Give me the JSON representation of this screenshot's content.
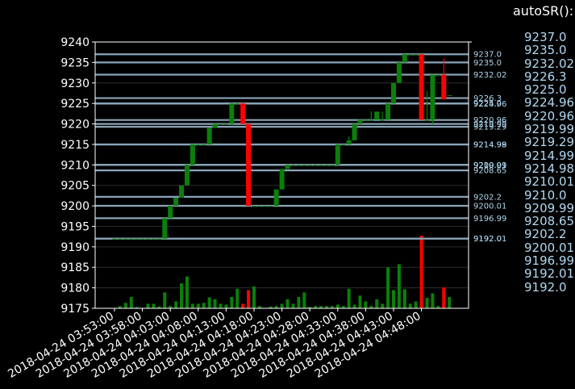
{
  "side_panel": {
    "title": "autoSR():",
    "levels": [
      "9237.0",
      "9235.0",
      "9232.02",
      "9226.3",
      "9225.0",
      "9224.96",
      "9220.96",
      "9219.99",
      "9219.29",
      "9214.99",
      "9214.98",
      "9210.01",
      "9210.0",
      "9209.99",
      "9208.65",
      "9202.2",
      "9200.01",
      "9196.99",
      "9192.01",
      "9192.0"
    ]
  },
  "colors": {
    "up": "#0a800a",
    "down": "#ff0000",
    "level_line": "#8aa4b8",
    "level_label": "#b0d8f0",
    "axis": "#ffffff",
    "background": "#000000"
  },
  "chart_data": {
    "type": "candlestick",
    "title": "",
    "xlabel": "",
    "ylabel": "",
    "grid": true,
    "ylim": [
      9175,
      9240
    ],
    "yticks": [
      9175,
      9180,
      9185,
      9190,
      9195,
      9200,
      9205,
      9210,
      9215,
      9220,
      9225,
      9230,
      9235,
      9240
    ],
    "xticks": [
      {
        "label": "2018-04-24 03:53:00",
        "index": 0
      },
      {
        "label": "2018-04-24 03:58:00",
        "index": 5
      },
      {
        "label": "2018-04-24 04:03:00",
        "index": 10
      },
      {
        "label": "2018-04-24 04:08:00",
        "index": 15
      },
      {
        "label": "2018-04-24 04:13:00",
        "index": 20
      },
      {
        "label": "2018-04-24 04:18:00",
        "index": 25
      },
      {
        "label": "2018-04-24 04:23:00",
        "index": 30
      },
      {
        "label": "2018-04-24 04:28:00",
        "index": 35
      },
      {
        "label": "2018-04-24 04:33:00",
        "index": 40
      },
      {
        "label": "2018-04-24 04:38:00",
        "index": 45
      },
      {
        "label": "2018-04-24 04:43:00",
        "index": 50
      },
      {
        "label": "2018-04-24 04:48:00",
        "index": 55
      }
    ],
    "candles": [
      {
        "o": 9192,
        "h": 9192,
        "l": 9192,
        "c": 9192
      },
      {
        "o": 9192,
        "h": 9192,
        "l": 9192,
        "c": 9192
      },
      {
        "o": 9192,
        "h": 9192,
        "l": 9192,
        "c": 9192
      },
      {
        "o": 9192,
        "h": 9192,
        "l": 9192,
        "c": 9192
      },
      {
        "o": 9192,
        "h": 9192,
        "l": 9192,
        "c": 9192
      },
      {
        "o": 9192,
        "h": 9192,
        "l": 9192,
        "c": 9192
      },
      {
        "o": 9192,
        "h": 9192,
        "l": 9192,
        "c": 9192
      },
      {
        "o": 9192,
        "h": 9192,
        "l": 9192,
        "c": 9192
      },
      {
        "o": 9192,
        "h": 9192,
        "l": 9192,
        "c": 9192
      },
      {
        "o": 9192,
        "h": 9197,
        "l": 9192,
        "c": 9197
      },
      {
        "o": 9197,
        "h": 9200,
        "l": 9197,
        "c": 9200
      },
      {
        "o": 9200,
        "h": 9202,
        "l": 9200,
        "c": 9202
      },
      {
        "o": 9202,
        "h": 9205,
        "l": 9202,
        "c": 9205
      },
      {
        "o": 9205,
        "h": 9210,
        "l": 9205,
        "c": 9210
      },
      {
        "o": 9210,
        "h": 9215,
        "l": 9210,
        "c": 9215
      },
      {
        "o": 9215,
        "h": 9215,
        "l": 9215,
        "c": 9215
      },
      {
        "o": 9215,
        "h": 9215,
        "l": 9215,
        "c": 9215
      },
      {
        "o": 9215,
        "h": 9219,
        "l": 9215,
        "c": 9219
      },
      {
        "o": 9219,
        "h": 9220,
        "l": 9219,
        "c": 9220
      },
      {
        "o": 9220,
        "h": 9220,
        "l": 9220,
        "c": 9220
      },
      {
        "o": 9220,
        "h": 9220,
        "l": 9220,
        "c": 9220
      },
      {
        "o": 9220,
        "h": 9225,
        "l": 9220,
        "c": 9225
      },
      {
        "o": 9225,
        "h": 9225,
        "l": 9225,
        "c": 9225
      },
      {
        "o": 9225,
        "h": 9225,
        "l": 9220,
        "c": 9220
      },
      {
        "o": 9220,
        "h": 9220,
        "l": 9200,
        "c": 9200
      },
      {
        "o": 9200,
        "h": 9200,
        "l": 9200,
        "c": 9200
      },
      {
        "o": 9200,
        "h": 9200,
        "l": 9200,
        "c": 9200
      },
      {
        "o": 9200,
        "h": 9200,
        "l": 9200,
        "c": 9200
      },
      {
        "o": 9200,
        "h": 9200,
        "l": 9200,
        "c": 9200
      },
      {
        "o": 9200,
        "h": 9204,
        "l": 9200,
        "c": 9204
      },
      {
        "o": 9204,
        "h": 9209,
        "l": 9204,
        "c": 9209
      },
      {
        "o": 9209,
        "h": 9210,
        "l": 9209,
        "c": 9210
      },
      {
        "o": 9210,
        "h": 9210,
        "l": 9210,
        "c": 9210
      },
      {
        "o": 9210,
        "h": 9210,
        "l": 9210,
        "c": 9210
      },
      {
        "o": 9210,
        "h": 9210,
        "l": 9210,
        "c": 9210
      },
      {
        "o": 9210,
        "h": 9210,
        "l": 9210,
        "c": 9210
      },
      {
        "o": 9210,
        "h": 9210,
        "l": 9210,
        "c": 9210
      },
      {
        "o": 9210,
        "h": 9210,
        "l": 9210,
        "c": 9210
      },
      {
        "o": 9210,
        "h": 9210,
        "l": 9210,
        "c": 9210
      },
      {
        "o": 9210,
        "h": 9210,
        "l": 9210,
        "c": 9210
      },
      {
        "o": 9210,
        "h": 9215,
        "l": 9210,
        "c": 9215
      },
      {
        "o": 9215,
        "h": 9215,
        "l": 9215,
        "c": 9215
      },
      {
        "o": 9215,
        "h": 9217,
        "l": 9215,
        "c": 9216
      },
      {
        "o": 9216,
        "h": 9220,
        "l": 9216,
        "c": 9220
      },
      {
        "o": 9220,
        "h": 9221,
        "l": 9220,
        "c": 9221
      },
      {
        "o": 9221,
        "h": 9221,
        "l": 9221,
        "c": 9221
      },
      {
        "o": 9221,
        "h": 9223,
        "l": 9221,
        "c": 9221
      },
      {
        "o": 9221,
        "h": 9223,
        "l": 9221,
        "c": 9223
      },
      {
        "o": 9221,
        "h": 9223,
        "l": 9221,
        "c": 9221
      },
      {
        "o": 9221,
        "h": 9225,
        "l": 9221,
        "c": 9225
      },
      {
        "o": 9225,
        "h": 9230,
        "l": 9225,
        "c": 9230
      },
      {
        "o": 9230,
        "h": 9235,
        "l": 9230,
        "c": 9235
      },
      {
        "o": 9235,
        "h": 9237,
        "l": 9235,
        "c": 9237
      },
      {
        "o": 9237,
        "h": 9237,
        "l": 9237,
        "c": 9237
      },
      {
        "o": 9237,
        "h": 9237,
        "l": 9237,
        "c": 9237
      },
      {
        "o": 9237,
        "h": 9237,
        "l": 9221,
        "c": 9221
      },
      {
        "o": 9221,
        "h": 9228,
        "l": 9221,
        "c": 9221
      },
      {
        "o": 9221,
        "h": 9232,
        "l": 9220,
        "c": 9232
      },
      {
        "o": 9232,
        "h": 9232,
        "l": 9232,
        "c": 9232
      },
      {
        "o": 9232,
        "h": 9236,
        "l": 9226,
        "c": 9226
      },
      {
        "o": 9227,
        "h": 9227,
        "l": 9227,
        "c": 9227
      }
    ],
    "volume": [
      0,
      0.5,
      1.2,
      2.5,
      0.3,
      0,
      1,
      1,
      0.4,
      3.5,
      0.5,
      1.5,
      5.5,
      7,
      1,
      1,
      1.2,
      2.4,
      2,
      1,
      0.8,
      2.5,
      4.3,
      1,
      4,
      4.8,
      0.5,
      0,
      0.4,
      0.5,
      1,
      2,
      1,
      2.5,
      3.5,
      0.3,
      0.5,
      0.5,
      0.5,
      0.5,
      0.8,
      0.5,
      4.3,
      0.8,
      2.8,
      1.5,
      0.5,
      2,
      1,
      9,
      4,
      9.7,
      4.2,
      1,
      1.5,
      16,
      2.3,
      3.3,
      0.5,
      4.6,
      2.5
    ],
    "levels": [
      {
        "value": 9237.0,
        "label": "9237.0"
      },
      {
        "value": 9235.0,
        "label": "9235.0"
      },
      {
        "value": 9232.02,
        "label": "9232.02"
      },
      {
        "value": 9226.3,
        "label": "9226.3"
      },
      {
        "value": 9225.0,
        "label": "9225.0"
      },
      {
        "value": 9224.96,
        "label": "9224.96"
      },
      {
        "value": 9220.96,
        "label": "9220.96"
      },
      {
        "value": 9219.99,
        "label": "9219.99"
      },
      {
        "value": 9219.29,
        "label": "9219.29"
      },
      {
        "value": 9214.99,
        "label": "9214.99"
      },
      {
        "value": 9214.98,
        "label": "9214.98"
      },
      {
        "value": 9210.01,
        "label": "9210.01"
      },
      {
        "value": 9210.0,
        "label": "9210.0"
      },
      {
        "value": 9209.99,
        "label": "9209.99"
      },
      {
        "value": 9208.65,
        "label": "9208.65"
      },
      {
        "value": 9202.2,
        "label": "9202.2"
      },
      {
        "value": 9200.01,
        "label": "9200.01"
      },
      {
        "value": 9196.99,
        "label": "9196.99"
      },
      {
        "value": 9192.01,
        "label": "9192.01"
      },
      {
        "value": 9192.0,
        "label": "9192.0"
      }
    ]
  }
}
